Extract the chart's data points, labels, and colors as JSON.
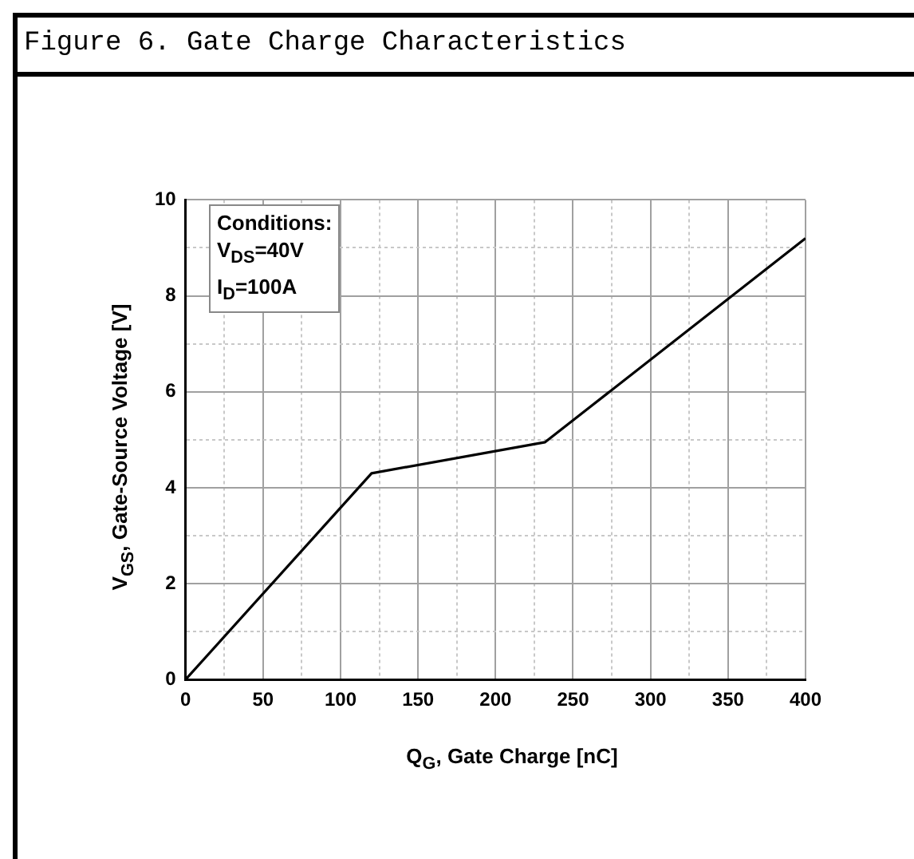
{
  "chart_data": {
    "type": "line",
    "title": "Figure 6. Gate Charge Characteristics",
    "xlabel": "Q$_{G}$, Gate Charge [nC]",
    "ylabel": "V$_{GS}$, Gate-Source Voltage [V]",
    "annotations": [
      "Conditions:",
      "V$_{DS}$=40V",
      "I$_{D}$=100A"
    ],
    "x": [
      0,
      120,
      232,
      400
    ],
    "series": [
      {
        "color": "#000000",
        "values": [
          0,
          4.3,
          4.95,
          9.2
        ]
      }
    ],
    "xlim": [
      0,
      400
    ],
    "ylim": [
      0,
      10
    ],
    "xticks": [
      0,
      {
        "value": 25,
        "label": null
      },
      50,
      {
        "value": 75,
        "label": null
      },
      100,
      {
        "value": 125,
        "label": null
      },
      150,
      {
        "value": 175,
        "label": null
      },
      200,
      {
        "value": 225,
        "label": null
      },
      250,
      {
        "value": 275,
        "label": null
      },
      300,
      {
        "value": 325,
        "label": null
      },
      350,
      {
        "value": 375,
        "label": null
      },
      400
    ],
    "yticks": [
      0,
      {
        "value": 1,
        "label": null
      },
      2,
      {
        "value": 3,
        "label": null
      },
      4,
      {
        "value": 5,
        "label": null
      },
      6,
      {
        "value": 7,
        "label": null
      },
      8,
      {
        "value": 9,
        "label": null
      },
      10
    ],
    "grid": true,
    "marker": "none",
    "line_style": "solid"
  }
}
